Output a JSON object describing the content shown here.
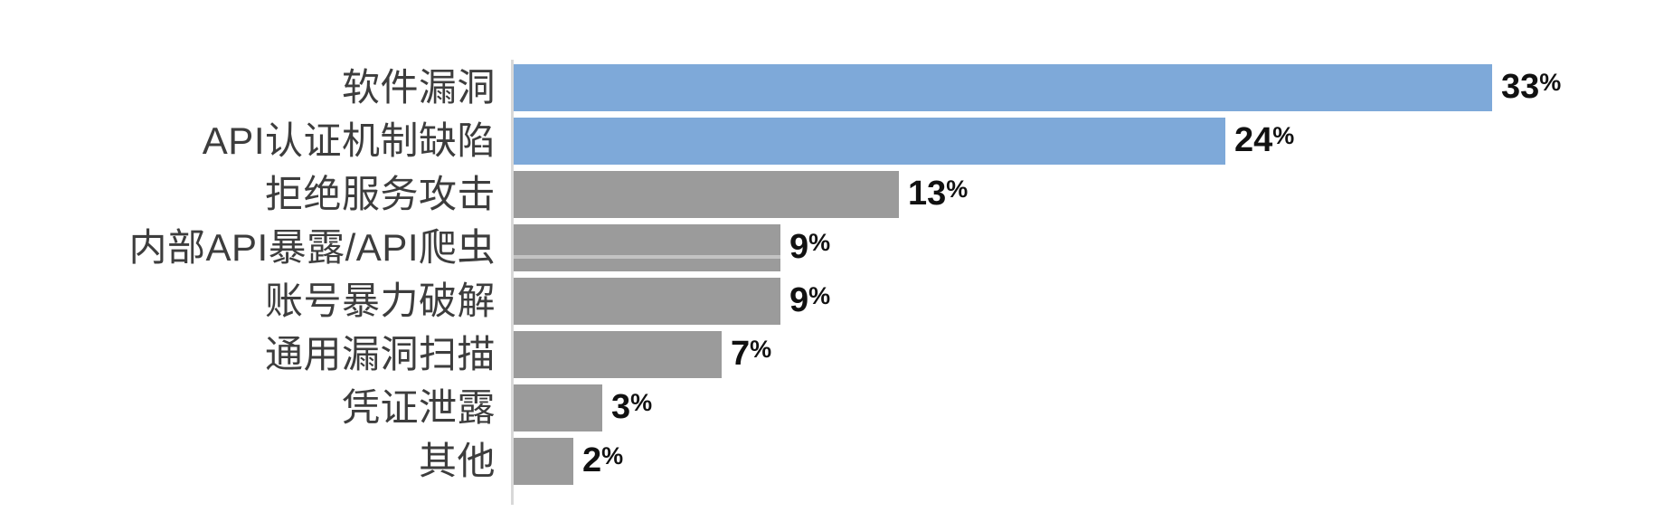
{
  "chart_data": {
    "type": "bar",
    "orientation": "horizontal",
    "title": "",
    "xlabel": "",
    "ylabel": "",
    "unit": "%",
    "xlim": [
      0,
      35
    ],
    "grid": false,
    "legend": false,
    "categories": [
      "软件漏洞",
      "API认证机制缺陷",
      "拒绝服务攻击",
      "内部API暴露/API爬虫",
      "账号暴力破解",
      "通用漏洞扫描",
      "凭证泄露",
      "其他"
    ],
    "values": [
      33,
      24,
      13,
      9,
      9,
      7,
      3,
      2
    ],
    "value_labels": [
      "33%",
      "24%",
      "13%",
      "9%",
      "9%",
      "7%",
      "3%",
      "2%"
    ],
    "bar_colors": [
      "#7EA9D9",
      "#7EA9D9",
      "#9B9B9B",
      "#9B9B9B",
      "#9B9B9B",
      "#9B9B9B",
      "#9B9B9B",
      "#9B9B9B"
    ],
    "highlight_color": "#7EA9D9",
    "base_color": "#9B9B9B"
  },
  "style": {
    "background": "#FFFFFF",
    "axis_line_color": "#D8D8D8",
    "category_text_color": "#3D3D3D",
    "value_text_color": "#111111"
  }
}
